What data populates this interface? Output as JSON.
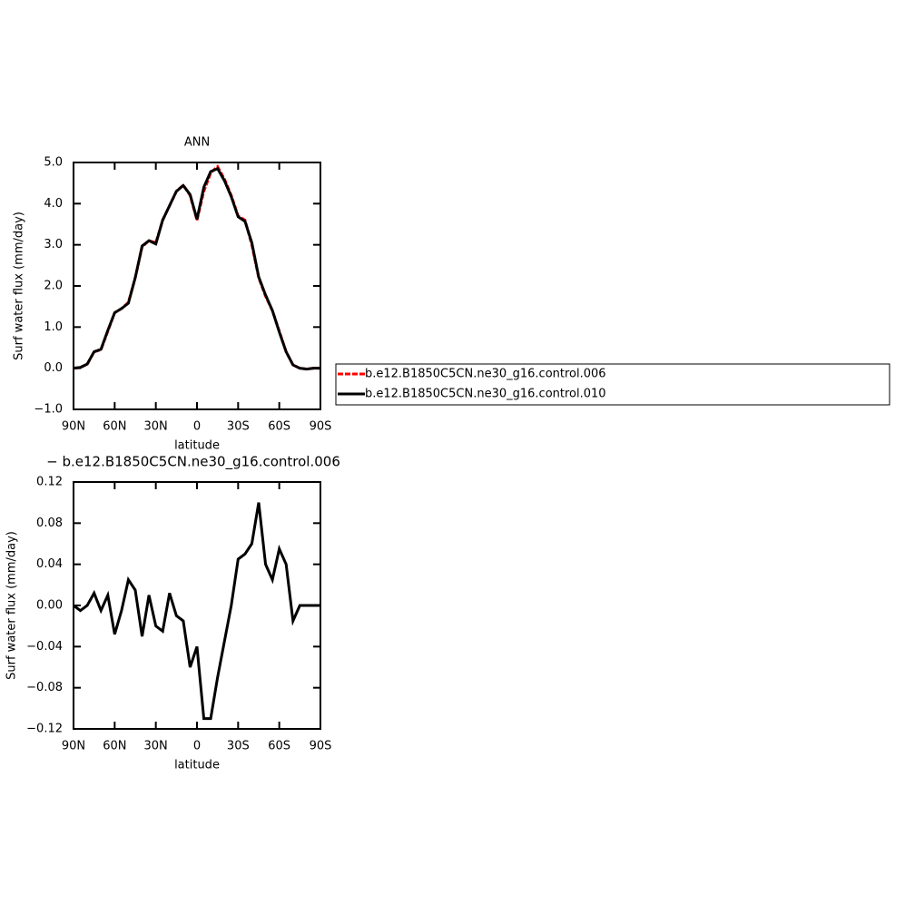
{
  "chart_data": [
    {
      "type": "line",
      "title": "ANN",
      "xlabel": "latitude",
      "ylabel": "Surf water flux (mm/day)",
      "x": [
        90,
        85,
        80,
        75,
        70,
        65,
        60,
        55,
        50,
        45,
        40,
        35,
        30,
        25,
        20,
        15,
        10,
        5,
        0,
        -5,
        -10,
        -15,
        -20,
        -25,
        -30,
        -35,
        -40,
        -45,
        -50,
        -55,
        -60,
        -65,
        -70,
        -75,
        -80,
        -85,
        -90
      ],
      "series": [
        {
          "name": "b.e12.B1850C5CN.ne30_g16.control.006",
          "color": "#ff0000",
          "dash": true,
          "values": [
            0.0,
            0.02,
            0.1,
            0.4,
            0.45,
            0.9,
            1.35,
            1.45,
            1.6,
            2.2,
            2.95,
            3.1,
            3.05,
            3.6,
            3.95,
            4.3,
            4.45,
            4.2,
            3.6,
            4.3,
            4.75,
            4.9,
            4.6,
            4.2,
            3.7,
            3.6,
            3.0,
            2.2,
            1.75,
            1.4,
            0.9,
            0.4,
            0.08,
            0.0,
            -0.02,
            0.0,
            0.0
          ]
        },
        {
          "name": "b.e12.B1850C5CN.ne30_g16.control.010",
          "color": "#000000",
          "dash": false,
          "values": [
            0.0,
            0.02,
            0.1,
            0.4,
            0.46,
            0.92,
            1.35,
            1.45,
            1.58,
            2.2,
            2.97,
            3.1,
            3.02,
            3.6,
            3.95,
            4.3,
            4.44,
            4.22,
            3.62,
            4.4,
            4.78,
            4.85,
            4.56,
            4.17,
            3.68,
            3.57,
            3.05,
            2.22,
            1.78,
            1.4,
            0.88,
            0.4,
            0.08,
            0.0,
            -0.02,
            0.0,
            0.0
          ]
        }
      ],
      "xlim": [
        90,
        -90
      ],
      "xticks": [
        {
          "value": 90,
          "label": "90N"
        },
        {
          "value": 60,
          "label": "60N"
        },
        {
          "value": 30,
          "label": "30N"
        },
        0,
        {
          "value": -30,
          "label": "30S"
        },
        {
          "value": -60,
          "label": "60S"
        },
        {
          "value": -90,
          "label": "90S"
        }
      ],
      "ylim": [
        -1,
        5
      ],
      "yticks": [
        {
          "value": 5,
          "label": "5.0"
        },
        {
          "value": 4,
          "label": "4.0"
        },
        {
          "value": 3,
          "label": "3.0"
        },
        {
          "value": 2,
          "label": "2.0"
        },
        {
          "value": 1,
          "label": "1.0"
        },
        {
          "value": 0,
          "label": "0.0"
        },
        {
          "value": -1,
          "label": "−1.0"
        }
      ],
      "legend": "right"
    },
    {
      "type": "line",
      "title": "− b.e12.B1850C5CN.ne30_g16.control.006",
      "xlabel": "latitude",
      "ylabel": "Surf water flux (mm/day)",
      "x": [
        90,
        85,
        80,
        75,
        70,
        65,
        60,
        55,
        50,
        45,
        40,
        35,
        30,
        25,
        20,
        15,
        10,
        5,
        0,
        -5,
        -10,
        -15,
        -20,
        -25,
        -30,
        -35,
        -40,
        -45,
        -50,
        -55,
        -60,
        -65,
        -70,
        -75,
        -80,
        -85,
        -90
      ],
      "series": [
        {
          "color": "#000000",
          "dash": false,
          "values": [
            0.0,
            -0.005,
            0.0,
            0.012,
            -0.005,
            0.01,
            -0.028,
            -0.005,
            0.025,
            0.015,
            -0.03,
            0.01,
            -0.02,
            -0.025,
            0.012,
            -0.01,
            -0.015,
            -0.06,
            -0.04,
            -0.11,
            -0.11,
            -0.07,
            -0.035,
            0.0,
            0.045,
            0.05,
            0.06,
            0.1,
            0.04,
            0.025,
            0.055,
            0.04,
            -0.015,
            0.0,
            0.0,
            0.0,
            0.0
          ]
        }
      ],
      "xlim": [
        90,
        -90
      ],
      "xticks": [
        {
          "value": 90,
          "label": "90N"
        },
        {
          "value": 60,
          "label": "60N"
        },
        {
          "value": 30,
          "label": "30N"
        },
        0,
        {
          "value": -30,
          "label": "30S"
        },
        {
          "value": -60,
          "label": "60S"
        },
        {
          "value": -90,
          "label": "90S"
        }
      ],
      "ylim": [
        -0.12,
        0.12
      ],
      "yticks": [
        0.12,
        0.08,
        0.04,
        {
          "value": 0,
          "label": "0.00"
        },
        {
          "value": -0.04,
          "label": "−0.04"
        },
        {
          "value": -0.08,
          "label": "−0.08"
        },
        {
          "value": -0.12,
          "label": "−0.12"
        }
      ]
    }
  ]
}
